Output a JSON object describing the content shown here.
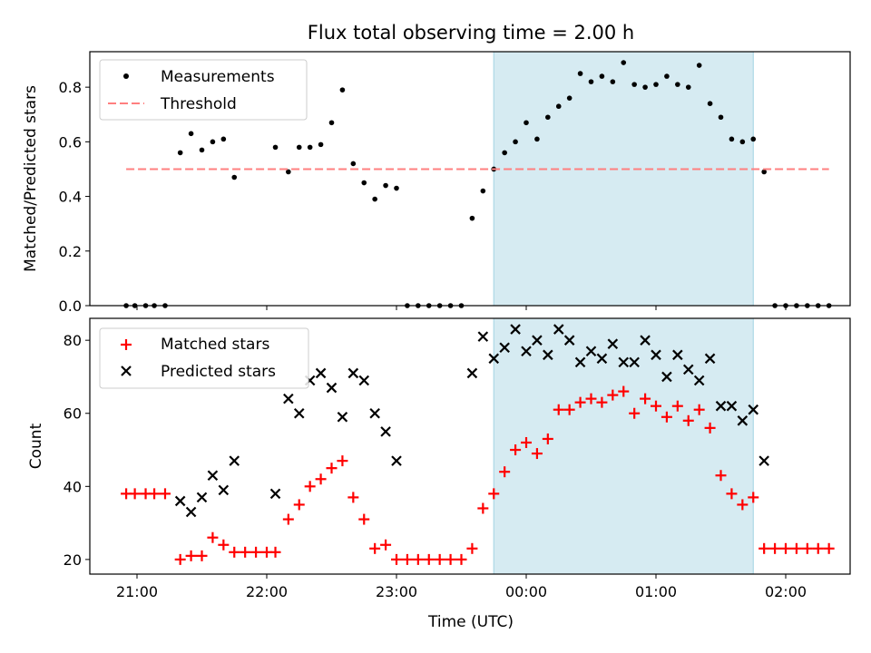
{
  "chart_data": {
    "type": "scatter",
    "title": "Flux total observing time = 2.00 h",
    "xlabel": "Time (UTC)",
    "x_ticks": [
      "21:00",
      "22:00",
      "23:00",
      "00:00",
      "01:00",
      "02:00"
    ],
    "shaded_interval": [
      "23:45",
      "01:45"
    ],
    "colors": {
      "measurements": "#000000",
      "threshold": "#ff7f7f",
      "matched": "#ff0000",
      "predicted": "#000000",
      "shade": "#add8e6"
    },
    "panels": [
      {
        "ylabel": "Matched/Predicted stars",
        "yticks": [
          "0.0",
          "0.2",
          "0.4",
          "0.6",
          "0.8"
        ],
        "ylim": [
          0,
          0.93
        ],
        "legend_placement": "upper-left",
        "series": [
          {
            "name": "Measurements",
            "marker": "dot",
            "x": [
              "20:55",
              "20:59",
              "21:04",
              "21:08",
              "21:13",
              "21:20",
              "21:25",
              "21:30",
              "21:35",
              "21:40",
              "21:45",
              "22:04",
              "22:10",
              "22:15",
              "22:20",
              "22:25",
              "22:30",
              "22:35",
              "22:40",
              "22:45",
              "22:50",
              "22:55",
              "23:00",
              "23:05",
              "23:10",
              "23:15",
              "23:20",
              "23:25",
              "23:30",
              "23:35",
              "23:40",
              "23:45",
              "23:50",
              "23:55",
              "00:00",
              "00:05",
              "00:10",
              "00:15",
              "00:20",
              "00:25",
              "00:30",
              "00:35",
              "00:40",
              "00:45",
              "00:50",
              "00:55",
              "01:00",
              "01:05",
              "01:10",
              "01:15",
              "01:20",
              "01:25",
              "01:30",
              "01:35",
              "01:40",
              "01:45",
              "01:50",
              "01:55",
              "02:00",
              "02:05",
              "02:10",
              "02:15",
              "02:20"
            ],
            "y": [
              0,
              0,
              0,
              0,
              0,
              0.56,
              0.63,
              0.57,
              0.6,
              0.61,
              0.47,
              0.58,
              0.49,
              0.58,
              0.58,
              0.59,
              0.67,
              0.79,
              0.52,
              0.45,
              0.39,
              0.44,
              0.43,
              0,
              0,
              0,
              0,
              0,
              0,
              0.32,
              0.42,
              0.5,
              0.56,
              0.6,
              0.67,
              0.61,
              0.69,
              0.73,
              0.76,
              0.85,
              0.82,
              0.84,
              0.82,
              0.89,
              0.81,
              0.8,
              0.81,
              0.84,
              0.81,
              0.8,
              0.88,
              0.74,
              0.69,
              0.61,
              0.6,
              0.61,
              0.49,
              0,
              0,
              0,
              0,
              0,
              0
            ]
          },
          {
            "name": "Threshold",
            "style": "dashed",
            "x": [
              "20:55",
              "02:20"
            ],
            "y": [
              0.5,
              0.5
            ]
          }
        ]
      },
      {
        "ylabel": "Count",
        "yticks": [
          "20",
          "40",
          "60",
          "80"
        ],
        "ylim": [
          16,
          86
        ],
        "legend_placement": "upper-left",
        "series": [
          {
            "name": "Matched stars",
            "marker": "plus",
            "x": [
              "20:55",
              "20:59",
              "21:04",
              "21:08",
              "21:13",
              "21:20",
              "21:25",
              "21:30",
              "21:35",
              "21:40",
              "21:45",
              "21:50",
              "21:55",
              "22:00",
              "22:04",
              "22:10",
              "22:15",
              "22:20",
              "22:25",
              "22:30",
              "22:35",
              "22:40",
              "22:45",
              "22:50",
              "22:55",
              "23:00",
              "23:05",
              "23:10",
              "23:15",
              "23:20",
              "23:25",
              "23:30",
              "23:35",
              "23:40",
              "23:45",
              "23:50",
              "23:55",
              "00:00",
              "00:05",
              "00:10",
              "00:15",
              "00:20",
              "00:25",
              "00:30",
              "00:35",
              "00:40",
              "00:45",
              "00:50",
              "00:55",
              "01:00",
              "01:05",
              "01:10",
              "01:15",
              "01:20",
              "01:25",
              "01:30",
              "01:35",
              "01:40",
              "01:45",
              "01:50",
              "01:55",
              "02:00",
              "02:05",
              "02:10",
              "02:15",
              "02:20"
            ],
            "y": [
              38,
              38,
              38,
              38,
              38,
              20,
              21,
              21,
              26,
              24,
              22,
              22,
              22,
              22,
              22,
              31,
              35,
              40,
              42,
              45,
              47,
              37,
              31,
              23,
              24,
              20,
              20,
              20,
              20,
              20,
              20,
              20,
              23,
              34,
              38,
              44,
              50,
              52,
              49,
              53,
              61,
              61,
              63,
              64,
              63,
              65,
              66,
              60,
              64,
              62,
              59,
              62,
              58,
              61,
              56,
              43,
              38,
              35,
              37,
              23,
              23,
              23,
              23,
              23,
              23,
              23
            ]
          },
          {
            "name": "Predicted stars",
            "marker": "x",
            "x": [
              "21:20",
              "21:25",
              "21:30",
              "21:35",
              "21:40",
              "21:45",
              "22:04",
              "22:10",
              "22:15",
              "22:20",
              "22:25",
              "22:30",
              "22:35",
              "22:40",
              "22:45",
              "22:50",
              "22:55",
              "23:00",
              "23:35",
              "23:40",
              "23:45",
              "23:50",
              "23:55",
              "00:00",
              "00:05",
              "00:10",
              "00:15",
              "00:20",
              "00:25",
              "00:30",
              "00:35",
              "00:40",
              "00:45",
              "00:50",
              "00:55",
              "01:00",
              "01:05",
              "01:10",
              "01:15",
              "01:20",
              "01:25",
              "01:30",
              "01:35",
              "01:40",
              "01:45",
              "01:50"
            ],
            "y": [
              36,
              33,
              37,
              43,
              39,
              47,
              38,
              64,
              60,
              69,
              71,
              67,
              59,
              71,
              69,
              60,
              55,
              47,
              71,
              81,
              75,
              78,
              83,
              77,
              80,
              76,
              83,
              80,
              74,
              77,
              75,
              79,
              74,
              74,
              80,
              76,
              70,
              76,
              72,
              69,
              75,
              62,
              62,
              58,
              61,
              47
            ]
          }
        ]
      }
    ]
  }
}
